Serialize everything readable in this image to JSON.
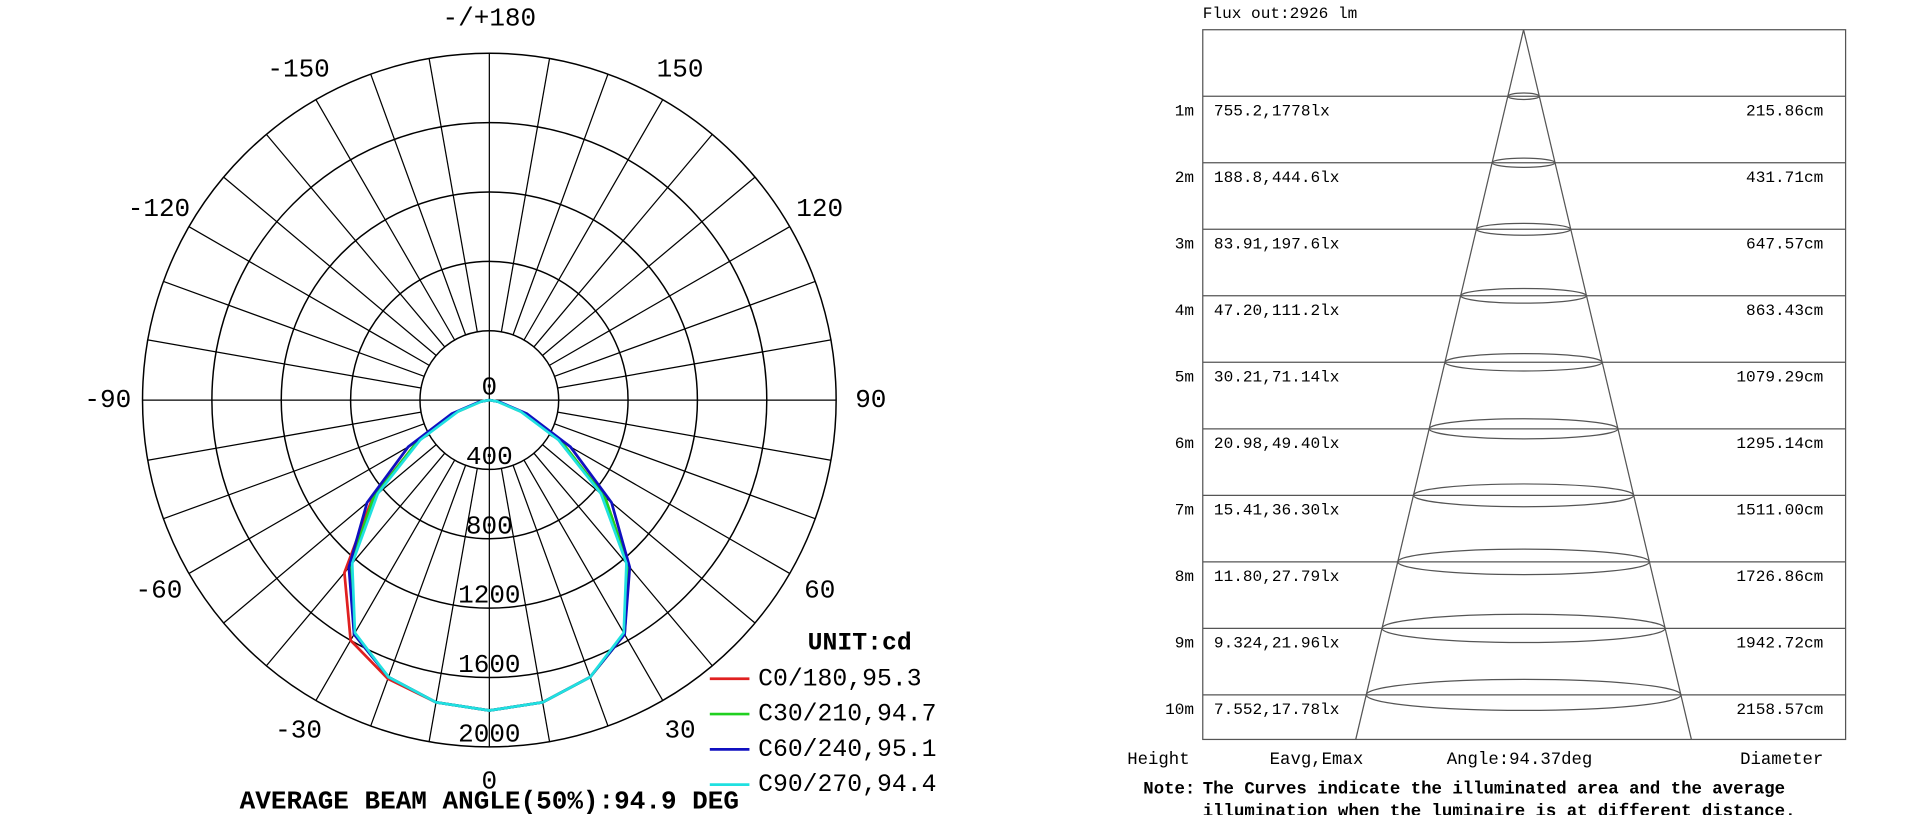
{
  "chart_data": {
    "type": "polar",
    "title": "AVERAGE BEAM ANGLE(50%):94.9 DEG",
    "unit_label": "UNIT:cd",
    "x": [
      -90,
      -80,
      -70,
      -60,
      -50,
      -40,
      -30,
      -20,
      -10,
      0,
      10,
      20,
      30,
      40,
      50,
      60,
      70,
      80,
      90
    ],
    "rlim": [
      0,
      2000
    ],
    "rticks": [
      0,
      400,
      800,
      1200,
      1600,
      2000
    ],
    "angle_ticks": [
      {
        "value": 180,
        "label": "-/+180"
      },
      150,
      120,
      90,
      60,
      30,
      0,
      -30,
      -60,
      -90,
      -120,
      -150
    ],
    "series": [
      {
        "name": "C0/180,95.3",
        "color": "#e02020",
        "values": [
          0,
          50,
          200,
          480,
          880,
          1300,
          1600,
          1710,
          1770,
          1790,
          1770,
          1700,
          1560,
          1250,
          870,
          480,
          200,
          50,
          0
        ]
      },
      {
        "name": "C30/210,94.7",
        "color": "#20d020",
        "values": [
          0,
          50,
          200,
          480,
          870,
          1250,
          1560,
          1700,
          1770,
          1790,
          1770,
          1700,
          1560,
          1250,
          870,
          480,
          200,
          50,
          0
        ]
      },
      {
        "name": "C60/240,95.1",
        "color": "#1010c0",
        "values": [
          0,
          60,
          230,
          540,
          920,
          1260,
          1560,
          1700,
          1770,
          1790,
          1770,
          1700,
          1560,
          1260,
          920,
          540,
          230,
          60,
          0
        ]
      },
      {
        "name": "C90/270,94.4",
        "color": "#20e0e0",
        "values": [
          0,
          45,
          190,
          460,
          840,
          1230,
          1550,
          1700,
          1770,
          1790,
          1770,
          1700,
          1550,
          1230,
          840,
          460,
          190,
          45,
          0
        ]
      }
    ]
  },
  "illuminance_table": {
    "flux": "Flux out:2926 lm",
    "rows": [
      [
        "1m",
        "755.2,1778lx",
        "215.86cm"
      ],
      [
        "2m",
        "188.8,444.6lx",
        "431.71cm"
      ],
      [
        "3m",
        "83.91,197.6lx",
        "647.57cm"
      ],
      [
        "4m",
        "47.20,111.2lx",
        "863.43cm"
      ],
      [
        "5m",
        "30.21,71.14lx",
        "1079.29cm"
      ],
      [
        "6m",
        "20.98,49.40lx",
        "1295.14cm"
      ],
      [
        "7m",
        "15.41,36.30lx",
        "1511.00cm"
      ],
      [
        "8m",
        "11.80,27.79lx",
        "1726.86cm"
      ],
      [
        "9m",
        "9.324,21.96lx",
        "1942.72cm"
      ],
      [
        "10m",
        "7.552,17.78lx",
        "2158.57cm"
      ]
    ],
    "footer": [
      "Height",
      "Eavg,Emax",
      "Angle:94.37deg",
      "Diameter"
    ],
    "note_label": "Note:",
    "note_lines": [
      "The Curves indicate the illuminated area and the average",
      "illumination when the luminaire is at different distance."
    ]
  }
}
